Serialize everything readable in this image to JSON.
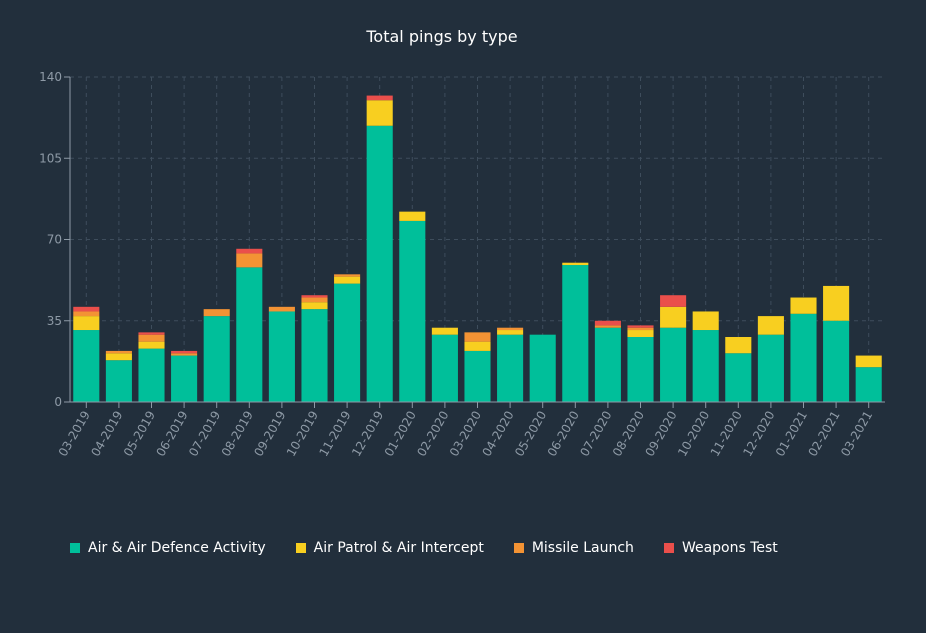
{
  "chart_data": {
    "type": "bar",
    "stacked": true,
    "title": "Total pings by type",
    "xlabel": "",
    "ylabel": "",
    "ylim": [
      0,
      140
    ],
    "yticks": [
      0,
      35,
      70,
      105,
      140
    ],
    "grid": true,
    "legend_position": "bottom-left",
    "categories": [
      "03-2019",
      "04-2019",
      "05-2019",
      "06-2019",
      "07-2019",
      "08-2019",
      "09-2019",
      "10-2019",
      "11-2019",
      "12-2019",
      "01-2020",
      "02-2020",
      "03-2020",
      "04-2020",
      "05-2020",
      "06-2020",
      "07-2020",
      "08-2020",
      "09-2020",
      "10-2020",
      "11-2020",
      "12-2020",
      "01-2021",
      "02-2021",
      "03-2021"
    ],
    "series": [
      {
        "name": "Air & Air Defence Activity",
        "color": "#00bf9a",
        "values": [
          31,
          18,
          23,
          20,
          37,
          58,
          39,
          40,
          51,
          119,
          78,
          29,
          22,
          29,
          29,
          59,
          32,
          28,
          32,
          31,
          21,
          29,
          38,
          35,
          15
        ]
      },
      {
        "name": "Air Patrol & Air Intercept",
        "color": "#f8cf20",
        "values": [
          6,
          3,
          3,
          0,
          0,
          0,
          0,
          3,
          3,
          11,
          4,
          3,
          4,
          2,
          0,
          1,
          0,
          3,
          9,
          8,
          7,
          8,
          7,
          15,
          5
        ]
      },
      {
        "name": "Missile Launch",
        "color": "#f39334",
        "values": [
          2,
          1,
          3,
          1,
          3,
          6,
          2,
          2,
          1,
          0,
          0,
          0,
          4,
          1,
          0,
          0,
          1,
          1,
          0,
          0,
          0,
          0,
          0,
          0,
          0
        ]
      },
      {
        "name": "Weapons Test",
        "color": "#ea4f4b",
        "values": [
          2,
          0,
          1,
          1,
          0,
          2,
          0,
          1,
          0,
          2,
          0,
          0,
          0,
          0,
          0,
          0,
          2,
          1,
          5,
          0,
          0,
          0,
          0,
          0,
          0
        ]
      }
    ]
  }
}
